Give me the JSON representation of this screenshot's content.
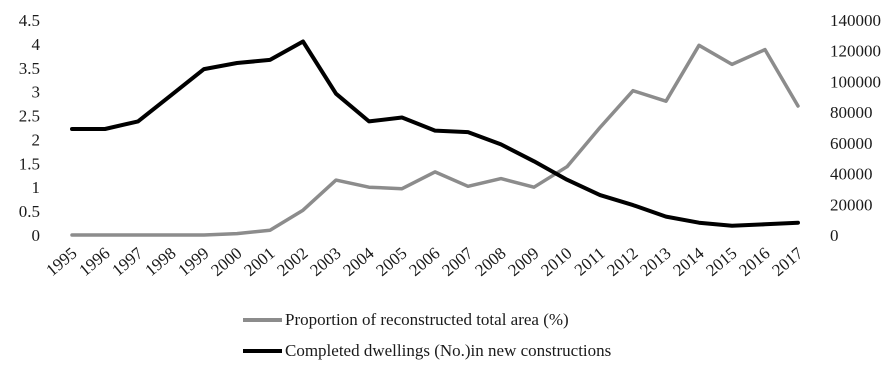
{
  "chart_data": {
    "type": "line",
    "title": "",
    "xlabel": "",
    "ylabel": "",
    "x": [
      "1995",
      "1996",
      "1997",
      "1998",
      "1999",
      "2000",
      "2001",
      "2002",
      "2003",
      "2004",
      "2005",
      "2006",
      "2007",
      "2008",
      "2009",
      "2010",
      "2011",
      "2012",
      "2013",
      "2014",
      "2015",
      "2016",
      "2017"
    ],
    "y_left": {
      "lim": [
        0,
        4.5
      ],
      "ticks": [
        "0",
        "0.5",
        "1",
        "1.5",
        "2",
        "2.5",
        "3",
        "3.5",
        "4",
        "4.5"
      ]
    },
    "y_right": {
      "lim": [
        0,
        140000
      ],
      "ticks": [
        "0",
        "20000",
        "40000",
        "60000",
        "80000",
        "100000",
        "120000",
        "140000"
      ]
    },
    "grid": false,
    "legend_position": "bottom",
    "series": [
      {
        "name": "Proportion of reconstructed total area (%)",
        "axis": "left",
        "color": "#8c8c8c",
        "values": [
          0,
          0,
          0,
          0,
          0,
          0.03,
          0.1,
          0.52,
          1.15,
          1.0,
          0.97,
          1.32,
          1.02,
          1.18,
          1.0,
          1.43,
          2.25,
          3.02,
          2.8,
          3.97,
          3.57,
          3.88,
          2.7
        ]
      },
      {
        "name": "Completed dwellings (No.)in new constructions",
        "axis": "right",
        "color": "#000000",
        "values": [
          69000,
          69000,
          74000,
          91000,
          108000,
          112000,
          114000,
          126000,
          92000,
          74000,
          76500,
          68000,
          67000,
          59000,
          48000,
          36000,
          26000,
          19500,
          12000,
          8000,
          6000,
          7000,
          8000
        ]
      }
    ]
  }
}
